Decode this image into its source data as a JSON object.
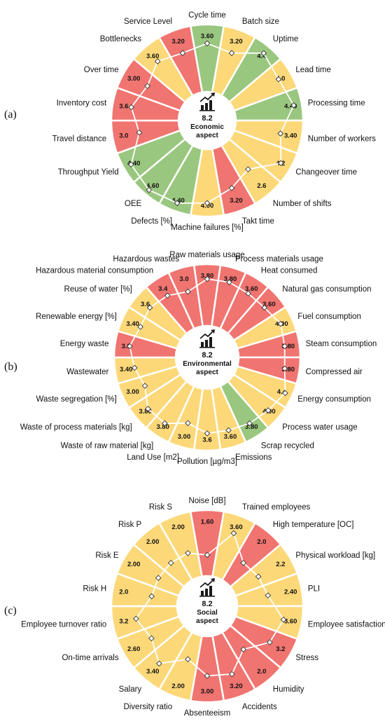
{
  "colors": {
    "green": "#9ac77f",
    "yellow": "#fcd879",
    "red": "#f07470"
  },
  "chart_data": [
    {
      "type": "radial_bar",
      "panel_label": "(a)",
      "center_score": "8.2",
      "center_title_lines": [
        "Economic",
        "aspect"
      ],
      "max_value": 5,
      "categories": [
        {
          "label": "Cycle time",
          "value": "3.60",
          "color": "green"
        },
        {
          "label": "Batch size",
          "value": "3.20",
          "color": "yellow"
        },
        {
          "label": "Uptime",
          "value": "4.4",
          "color": "green"
        },
        {
          "label": "Lead time",
          "value": "4.0",
          "color": "yellow"
        },
        {
          "label": "Processing time",
          "value": "4.40",
          "color": "green"
        },
        {
          "label": "Number of workers",
          "value": "3.40",
          "color": "yellow"
        },
        {
          "label": "Changeover time",
          "value": "4.2",
          "color": "yellow"
        },
        {
          "label": "Number of shifts",
          "value": "2.6",
          "color": "yellow"
        },
        {
          "label": "Takt time",
          "value": "3.20",
          "color": "red"
        },
        {
          "label": "Machine failures [%]",
          "value": "4.00",
          "color": "yellow"
        },
        {
          "label": "Defects [%]",
          "value": "4.40",
          "color": "green"
        },
        {
          "label": "OEE",
          "value": "4.60",
          "color": "green"
        },
        {
          "label": "Throughput Yield",
          "value": "4.40",
          "color": "green"
        },
        {
          "label": "Travel distance",
          "value": "3.0",
          "color": "red"
        },
        {
          "label": "Inventory cost",
          "value": "3.6",
          "color": "red"
        },
        {
          "label": "Over time",
          "value": "3.00",
          "color": "red"
        },
        {
          "label": "Bottlenecks",
          "value": "3.60",
          "color": "yellow"
        },
        {
          "label": "Service Level",
          "value": "3.20",
          "color": "red"
        }
      ]
    },
    {
      "type": "radial_bar",
      "panel_label": "(b)",
      "center_score": "8.2",
      "center_title_lines": [
        "Environmental",
        "aspect"
      ],
      "max_value": 5,
      "categories": [
        {
          "label": "Raw materials usage",
          "value": "3.80",
          "color": "red"
        },
        {
          "label": "Process materials usage",
          "value": "3.80",
          "color": "red"
        },
        {
          "label": "Heat consumed",
          "value": "3.60",
          "color": "red"
        },
        {
          "label": "Natural gas consumption",
          "value": "3.60",
          "color": "red"
        },
        {
          "label": "Fuel consumption",
          "value": "4.00",
          "color": "yellow"
        },
        {
          "label": "Steam consumption",
          "value": "3.80",
          "color": "red"
        },
        {
          "label": "Compressed air",
          "value": "3.80",
          "color": "red"
        },
        {
          "label": "Energy consumption",
          "value": "4.4",
          "color": "yellow"
        },
        {
          "label": "Process water usage",
          "value": "4.00",
          "color": "yellow"
        },
        {
          "label": "Scrap recycled",
          "value": "3.80",
          "color": "green"
        },
        {
          "label": "Emissions",
          "value": "3.60",
          "color": "yellow"
        },
        {
          "label": "Pollution [µg/m3]",
          "value": "3.6",
          "color": "yellow"
        },
        {
          "label": "Land Use [m2]",
          "value": "3.00",
          "color": "yellow"
        },
        {
          "label": "Waste of raw material [kg]",
          "value": "3.80",
          "color": "yellow"
        },
        {
          "label": "Waste of process materials [kg]",
          "value": "3.80",
          "color": "yellow"
        },
        {
          "label": "Waste segregation [%]",
          "value": "3.00",
          "color": "yellow"
        },
        {
          "label": "Wastewater",
          "value": "3.40",
          "color": "yellow"
        },
        {
          "label": "Energy waste",
          "value": "3.8",
          "color": "red"
        },
        {
          "label": "Renewable energy [%]",
          "value": "3.40",
          "color": "yellow"
        },
        {
          "label": "Reuse of water [%]",
          "value": "3.6",
          "color": "yellow"
        },
        {
          "label": "Hazardous material consumption",
          "value": "3.4",
          "color": "red"
        },
        {
          "label": "Hazardous wastes",
          "value": "3.0",
          "color": "red"
        }
      ]
    },
    {
      "type": "radial_bar",
      "panel_label": "(c)",
      "center_score": "8.2",
      "center_title_lines": [
        "Social",
        "aspect"
      ],
      "max_value": 5,
      "categories": [
        {
          "label": "Noise [dB]",
          "value": "1.60",
          "color": "red"
        },
        {
          "label": "Trained employees",
          "value": "3.60",
          "color": "yellow"
        },
        {
          "label": "High temperature [OC]",
          "value": "2.0",
          "color": "red"
        },
        {
          "label": "Physical workload [kg]",
          "value": "2.2",
          "color": "yellow"
        },
        {
          "label": "PLI",
          "value": "2.40",
          "color": "yellow"
        },
        {
          "label": "Employee satisfaction",
          "value": "3.60",
          "color": "yellow"
        },
        {
          "label": "Stress",
          "value": "3.2",
          "color": "red"
        },
        {
          "label": "Humidity",
          "value": "2.0",
          "color": "red"
        },
        {
          "label": "Accidents",
          "value": "3.20",
          "color": "red"
        },
        {
          "label": "Absenteeism",
          "value": "3.00",
          "color": "red"
        },
        {
          "label": "Diversity ratio",
          "value": "2.00",
          "color": "yellow"
        },
        {
          "label": "Salary",
          "value": "3.40",
          "color": "yellow"
        },
        {
          "label": "On-time arrivals",
          "value": "2.60",
          "color": "yellow"
        },
        {
          "label": "Employee turnover ratio",
          "value": "3.2",
          "color": "yellow"
        },
        {
          "label": "Risk H",
          "value": "2.0",
          "color": "yellow"
        },
        {
          "label": "Risk E",
          "value": "2.00",
          "color": "yellow"
        },
        {
          "label": "Risk P",
          "value": "2.00",
          "color": "yellow"
        },
        {
          "label": "Risk S",
          "value": "2.00",
          "color": "yellow"
        }
      ]
    }
  ]
}
